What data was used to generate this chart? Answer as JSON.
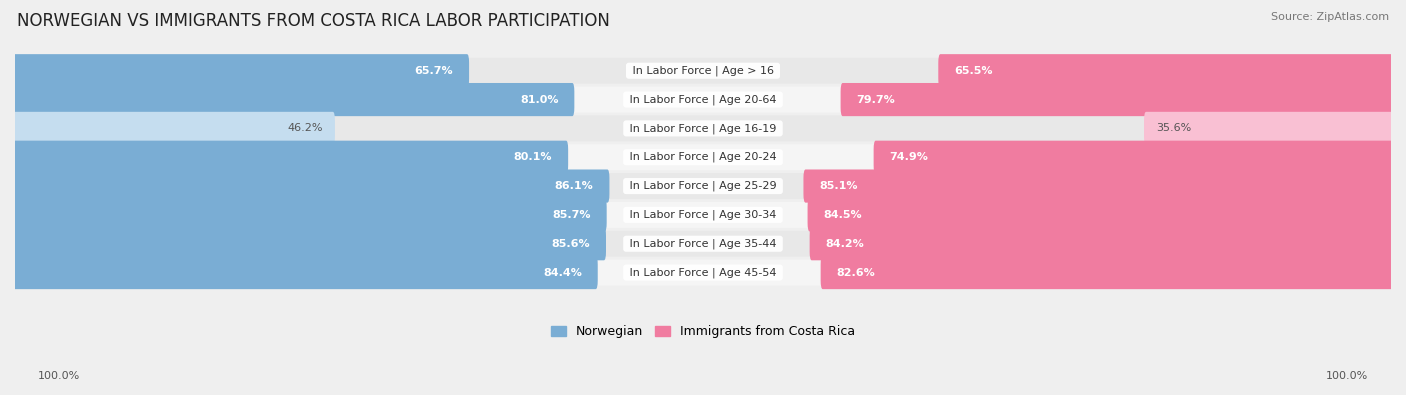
{
  "title": "NORWEGIAN VS IMMIGRANTS FROM COSTA RICA LABOR PARTICIPATION",
  "source": "Source: ZipAtlas.com",
  "categories": [
    "In Labor Force | Age > 16",
    "In Labor Force | Age 20-64",
    "In Labor Force | Age 16-19",
    "In Labor Force | Age 20-24",
    "In Labor Force | Age 25-29",
    "In Labor Force | Age 30-34",
    "In Labor Force | Age 35-44",
    "In Labor Force | Age 45-54"
  ],
  "norwegian_values": [
    65.7,
    81.0,
    46.2,
    80.1,
    86.1,
    85.7,
    85.6,
    84.4
  ],
  "costarica_values": [
    65.5,
    79.7,
    35.6,
    74.9,
    85.1,
    84.5,
    84.2,
    82.6
  ],
  "norwegian_color": "#7aadd4",
  "costarica_color": "#f07ca0",
  "norwegian_color_light": "#c5ddef",
  "costarica_color_light": "#f9c0d3",
  "background_color": "#efefef",
  "row_bg_even": "#e8e8e8",
  "row_bg_odd": "#f5f5f5",
  "legend_norwegian": "Norwegian",
  "legend_costarica": "Immigrants from Costa Rica",
  "max_value": 100.0,
  "title_fontsize": 12,
  "label_fontsize": 8,
  "value_fontsize": 8
}
